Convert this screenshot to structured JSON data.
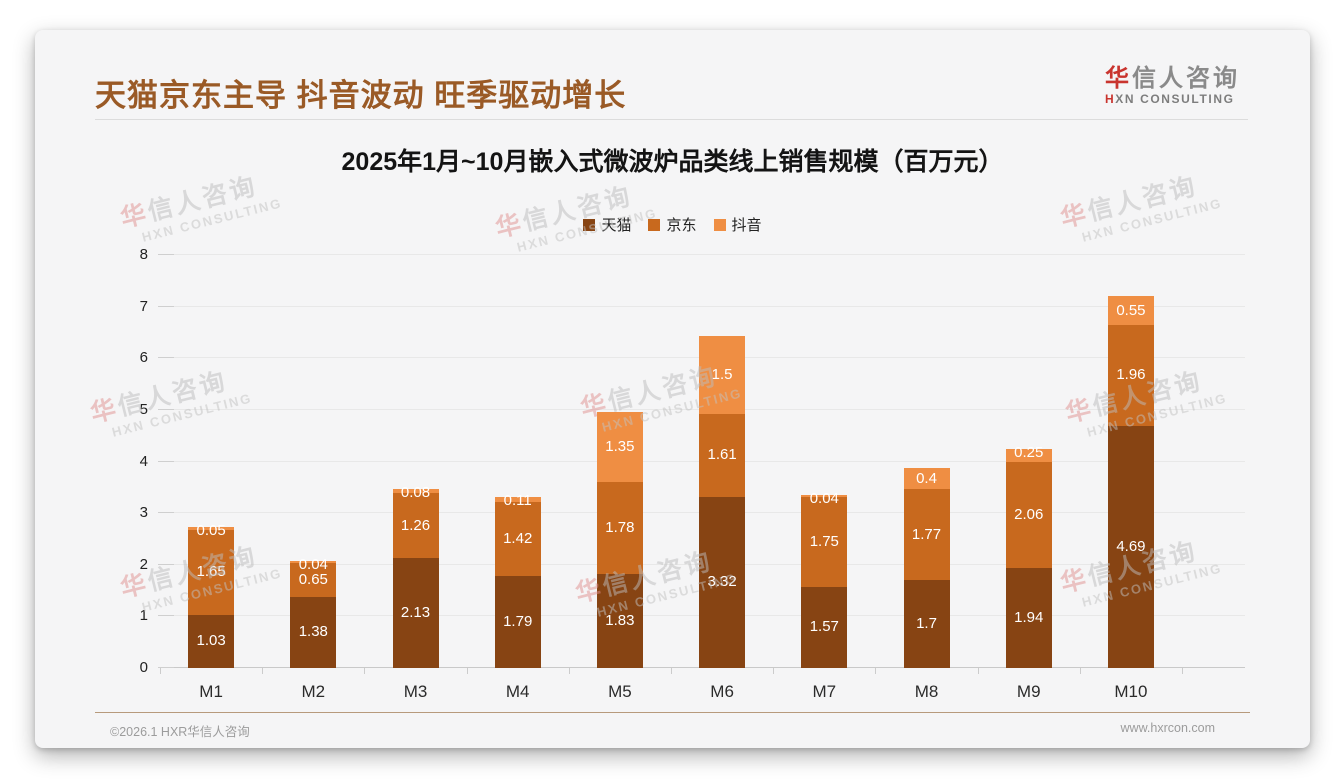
{
  "page": {
    "main_title": "天猫京东主导 抖音波动 旺季驱动增长",
    "logo": {
      "cn_accent": "华",
      "cn_rest": "信人咨询",
      "en_accent": "H",
      "en_rest": "XN CONSULTING"
    },
    "footer": {
      "copyright": "©2026.1 HXR华信人咨询",
      "website": "www.hxrcon.com"
    },
    "watermark": {
      "line1": "华信人咨询",
      "line2": "HXN CONSULTING"
    }
  },
  "chart_data": {
    "type": "bar",
    "stacked": true,
    "title": "2025年1月~10月嵌入式微波炉品类线上销售规模（百万元）",
    "categories": [
      "M1",
      "M2",
      "M3",
      "M4",
      "M5",
      "M6",
      "M7",
      "M8",
      "M9",
      "M10"
    ],
    "series": [
      {
        "name": "天猫",
        "color": "#874413",
        "values": [
          1.03,
          1.38,
          2.13,
          1.79,
          1.83,
          3.32,
          1.57,
          1.7,
          1.94,
          4.69
        ]
      },
      {
        "name": "京东",
        "color": "#c8691e",
        "values": [
          1.65,
          0.65,
          1.26,
          1.42,
          1.78,
          1.61,
          1.75,
          1.77,
          2.06,
          1.96
        ]
      },
      {
        "name": "抖音",
        "color": "#ef8e43",
        "values": [
          0.05,
          0.04,
          0.08,
          0.11,
          1.35,
          1.5,
          0.04,
          0.4,
          0.25,
          0.55
        ]
      }
    ],
    "xlabel": "",
    "ylabel": "",
    "ylim": [
      0,
      8
    ],
    "yticks": [
      0,
      1,
      2,
      3,
      4,
      5,
      6,
      7,
      8
    ],
    "grid": true,
    "legend_position": "top",
    "value_label_color": "#ffffff"
  }
}
